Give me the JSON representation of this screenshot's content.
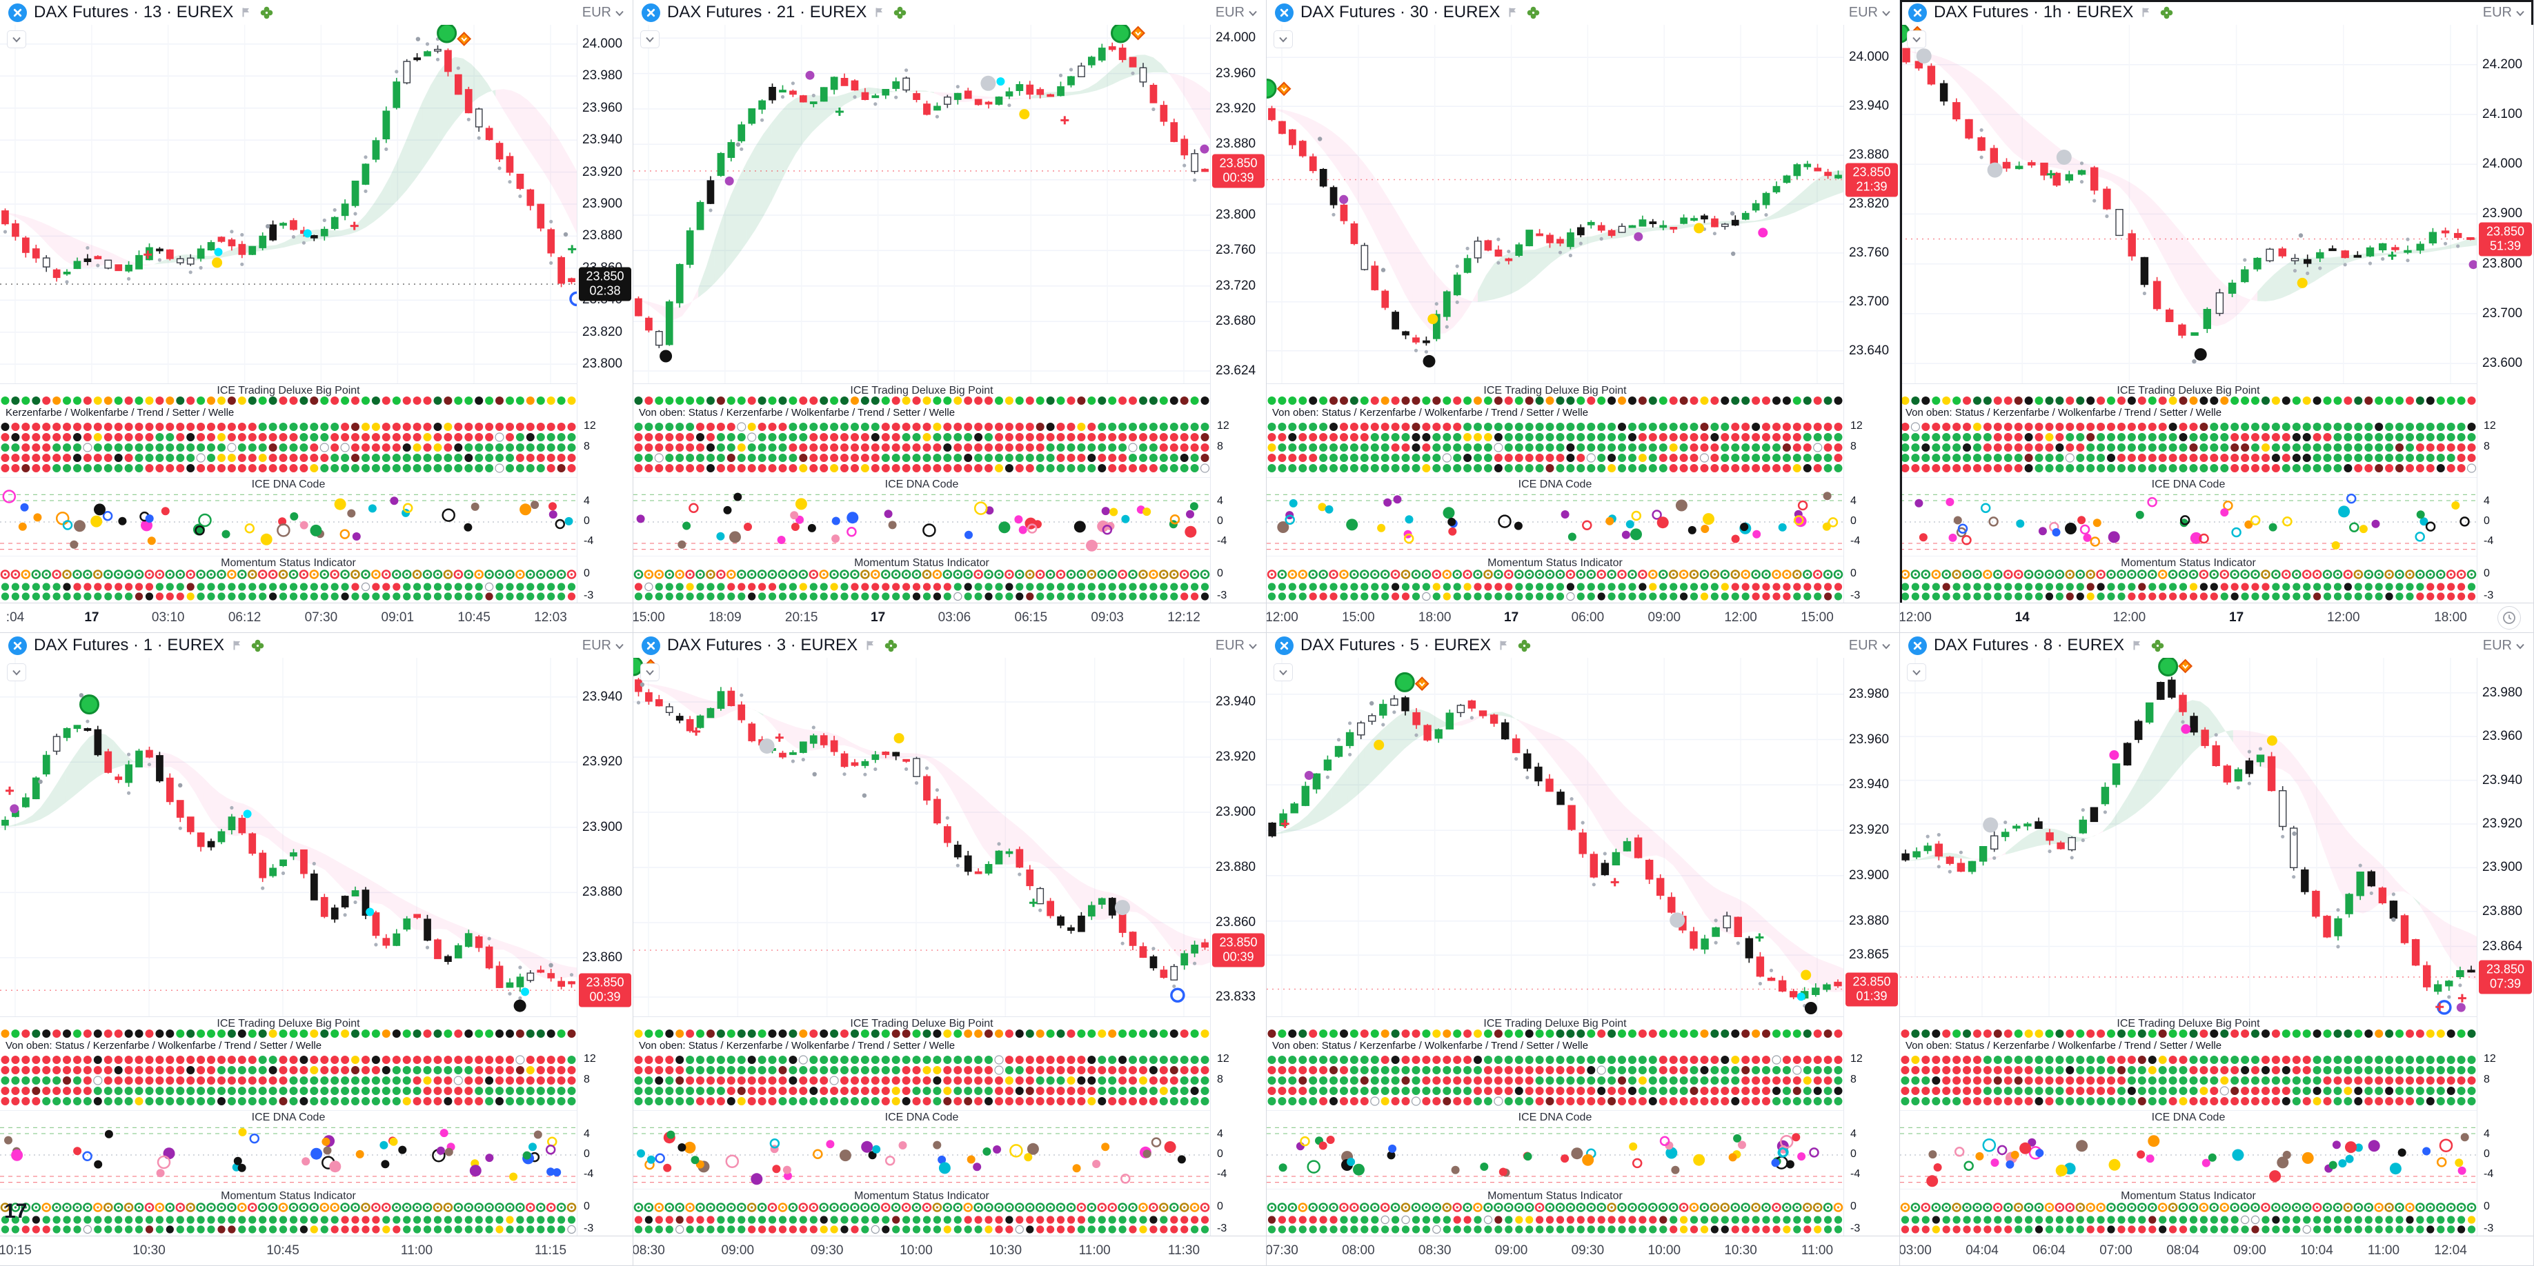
{
  "ui": {
    "sections": {
      "bigpoint": "ICE Trading Deluxe Big Point",
      "dna": "ICE DNA Code",
      "momentum": "Momentum Status Indicator",
      "legend_long": "Von oben: Status / Kerzenfarbe / Wolkenfarbe / Trend / Setter / Welle",
      "legend_short": "Kerzenfarbe / Wolkenfarbe / Trend / Setter / Welle"
    },
    "indicator_axis": {
      "bigpoint": [
        "12",
        "8"
      ],
      "dna": [
        "4",
        "0",
        "-4"
      ],
      "momentum": [
        "0",
        "-3"
      ]
    }
  },
  "colors": {
    "up": "#1aa74a",
    "down": "#f23645",
    "candle_black": "#141414",
    "cloud_up": "rgba(33,150,83,0.13)",
    "cloud_down": "rgba(244,110,180,0.10)",
    "logo_blue": "#2196f3",
    "clover_green": "#4f9d2f",
    "grid": "#f0f3fa",
    "text": "#131722",
    "muted": "#787b86",
    "badge_black": "#111111",
    "badge_red": "#f23645"
  },
  "panels": [
    {
      "title": "DAX Futures · 13 · EUREX",
      "currency": "EUR",
      "active": false,
      "legend": "short",
      "seed": 113,
      "clock": false,
      "corner_label": null
    },
    {
      "title": "DAX Futures · 21 · EUREX",
      "currency": "EUR",
      "active": false,
      "legend": "long",
      "seed": 221,
      "clock": false,
      "corner_label": null
    },
    {
      "title": "DAX Futures · 30 · EUREX",
      "currency": "EUR",
      "active": false,
      "legend": "long",
      "seed": 330,
      "clock": false,
      "corner_label": null
    },
    {
      "title": "DAX Futures · 1h · EUREX",
      "currency": "EUR",
      "active": true,
      "legend": "long",
      "seed": 460,
      "clock": true,
      "corner_label": null
    },
    {
      "title": "DAX Futures · 1 · EUREX",
      "currency": "EUR",
      "active": false,
      "legend": "long",
      "seed": 501,
      "clock": false,
      "corner_label": "17"
    },
    {
      "title": "DAX Futures · 3 · EUREX",
      "currency": "EUR",
      "active": false,
      "legend": "long",
      "seed": 603,
      "clock": false,
      "corner_label": null
    },
    {
      "title": "DAX Futures · 5 · EUREX",
      "currency": "EUR",
      "active": false,
      "legend": "long",
      "seed": 705,
      "clock": false,
      "corner_label": null
    },
    {
      "title": "DAX Futures · 8 · EUREX",
      "currency": "EUR",
      "active": false,
      "legend": "long",
      "seed": 808,
      "clock": false,
      "corner_label": null
    }
  ],
  "chart_data": [
    {
      "type": "candlestick",
      "symbol": "DAX Futures",
      "exchange": "EUREX",
      "interval": "13",
      "bars": 56,
      "y_range": [
        23.788,
        24.012
      ],
      "y_ticks": [
        "24.000",
        "23.980",
        "23.960",
        "23.940",
        "23.920",
        "23.900",
        "23.880",
        "23.860",
        "23.840",
        "23.820",
        "23.800"
      ],
      "last_price": "23.850",
      "countdown": "02:38",
      "badge_color": "#111111",
      "x_labels": [
        ":04",
        "17",
        "03:10",
        "06:12",
        "07:30",
        "09:01",
        "10:45",
        "12:03"
      ],
      "price_path": [
        23.895,
        23.87,
        23.855,
        23.868,
        23.856,
        23.874,
        23.862,
        23.88,
        23.868,
        23.89,
        23.878,
        23.895,
        23.935,
        23.99,
        23.997,
        23.96,
        23.93,
        23.9,
        23.852
      ]
    },
    {
      "type": "candlestick",
      "symbol": "DAX Futures",
      "exchange": "EUREX",
      "interval": "21",
      "bars": 56,
      "y_range": [
        23.61,
        24.015
      ],
      "y_ticks": [
        "24.000",
        "23.960",
        "23.920",
        "23.880",
        "23.840",
        "23.800",
        "23.760",
        "23.720",
        "23.680",
        "23.624"
      ],
      "last_price": "23.850",
      "countdown": "00:39",
      "badge_color": "#f23645",
      "x_labels": [
        "15:00",
        "18:09",
        "20:15",
        "17",
        "03:06",
        "06:15",
        "09:03",
        "12:12"
      ],
      "price_path": [
        23.705,
        23.652,
        23.78,
        23.862,
        23.912,
        23.948,
        23.922,
        23.956,
        23.93,
        23.952,
        23.916,
        23.94,
        23.922,
        23.948,
        23.93,
        23.962,
        23.992,
        23.968,
        23.9,
        23.852
      ]
    },
    {
      "type": "candlestick",
      "symbol": "DAX Futures",
      "exchange": "EUREX",
      "interval": "30",
      "bars": 56,
      "y_range": [
        23.6,
        24.04
      ],
      "y_ticks": [
        "24.000",
        "23.940",
        "23.880",
        "23.820",
        "23.760",
        "23.700",
        "23.640"
      ],
      "last_price": "23.850",
      "countdown": "21:39",
      "badge_color": "#f23645",
      "x_labels": [
        "12:00",
        "15:00",
        "18:00",
        "17",
        "06:00",
        "09:00",
        "12:00",
        "15:00"
      ],
      "price_path": [
        23.938,
        23.9,
        23.858,
        23.8,
        23.728,
        23.662,
        23.648,
        23.72,
        23.778,
        23.748,
        23.79,
        23.768,
        23.8,
        23.784,
        23.8,
        23.79,
        23.806,
        23.792,
        23.812,
        23.842,
        23.872,
        23.852
      ]
    },
    {
      "type": "candlestick",
      "symbol": "DAX Futures",
      "exchange": "EUREX",
      "interval": "1h",
      "bars": 46,
      "y_range": [
        23.56,
        24.28
      ],
      "y_ticks": [
        "24.200",
        "24.100",
        "24.000",
        "23.900",
        "23.800",
        "23.700",
        "23.600"
      ],
      "last_price": "23.850",
      "countdown": "51:39",
      "badge_color": "#f23645",
      "x_labels": [
        "12:00",
        "14",
        "12:00",
        "17",
        "12:00",
        "18:00"
      ],
      "price_path": [
        24.228,
        24.19,
        24.12,
        24.042,
        23.986,
        24.006,
        23.962,
        23.992,
        23.9,
        23.8,
        23.69,
        23.652,
        23.73,
        23.79,
        23.826,
        23.8,
        23.832,
        23.81,
        23.84,
        23.82,
        23.862,
        23.852
      ]
    },
    {
      "type": "candlestick",
      "symbol": "DAX Futures",
      "exchange": "EUREX",
      "interval": "1",
      "bars": 56,
      "y_range": [
        23.842,
        23.952
      ],
      "y_ticks": [
        "23.940",
        "23.920",
        "23.900",
        "23.880",
        "23.860"
      ],
      "last_price": "23.850",
      "countdown": "00:39",
      "badge_color": "#f23645",
      "x_labels": [
        "10:15",
        "10:30",
        "10:45",
        "11:00",
        "11:15"
      ],
      "price_path": [
        23.9,
        23.908,
        23.928,
        23.932,
        23.912,
        23.925,
        23.905,
        23.893,
        23.903,
        23.885,
        23.893,
        23.872,
        23.882,
        23.862,
        23.875,
        23.857,
        23.868,
        23.85,
        23.856,
        23.852
      ]
    },
    {
      "type": "candlestick",
      "symbol": "DAX Futures",
      "exchange": "EUREX",
      "interval": "3",
      "bars": 56,
      "y_range": [
        23.826,
        23.956
      ],
      "y_ticks": [
        "23.940",
        "23.920",
        "23.900",
        "23.880",
        "23.860",
        "23.833"
      ],
      "last_price": "23.850",
      "countdown": "00:39",
      "badge_color": "#f23645",
      "x_labels": [
        "08:30",
        "09:00",
        "09:30",
        "10:00",
        "10:30",
        "11:00",
        "11:30"
      ],
      "price_path": [
        23.947,
        23.938,
        23.93,
        23.944,
        23.925,
        23.92,
        23.928,
        23.916,
        23.922,
        23.918,
        23.89,
        23.876,
        23.888,
        23.868,
        23.856,
        23.87,
        23.852,
        23.84,
        23.852
      ]
    },
    {
      "type": "candlestick",
      "symbol": "DAX Futures",
      "exchange": "EUREX",
      "interval": "5",
      "bars": 52,
      "y_range": [
        23.838,
        23.996
      ],
      "y_ticks": [
        "23.980",
        "23.960",
        "23.940",
        "23.920",
        "23.900",
        "23.880",
        "23.865"
      ],
      "last_price": "23.850",
      "countdown": "01:39",
      "badge_color": "#f23645",
      "x_labels": [
        "07:30",
        "08:00",
        "08:30",
        "09:00",
        "09:30",
        "10:00",
        "10:30",
        "11:00"
      ],
      "price_path": [
        23.918,
        23.932,
        23.952,
        23.968,
        23.978,
        23.96,
        23.976,
        23.968,
        23.948,
        23.93,
        23.9,
        23.916,
        23.89,
        23.868,
        23.882,
        23.856,
        23.846,
        23.852
      ]
    },
    {
      "type": "candlestick",
      "symbol": "DAX Futures",
      "exchange": "EUREX",
      "interval": "8",
      "bars": 52,
      "y_range": [
        23.832,
        23.996
      ],
      "y_ticks": [
        "23.980",
        "23.960",
        "23.940",
        "23.920",
        "23.900",
        "23.880",
        "23.864"
      ],
      "last_price": "23.850",
      "countdown": "07:39",
      "badge_color": "#f23645",
      "x_labels": [
        "03:00",
        "04:04",
        "06:04",
        "07:00",
        "08:04",
        "09:00",
        "10:04",
        "11:00",
        "12:04"
      ],
      "price_path": [
        23.903,
        23.91,
        23.898,
        23.915,
        23.921,
        23.908,
        23.928,
        23.958,
        23.986,
        23.962,
        23.94,
        23.952,
        23.9,
        23.868,
        23.898,
        23.878,
        23.844,
        23.852
      ]
    }
  ]
}
